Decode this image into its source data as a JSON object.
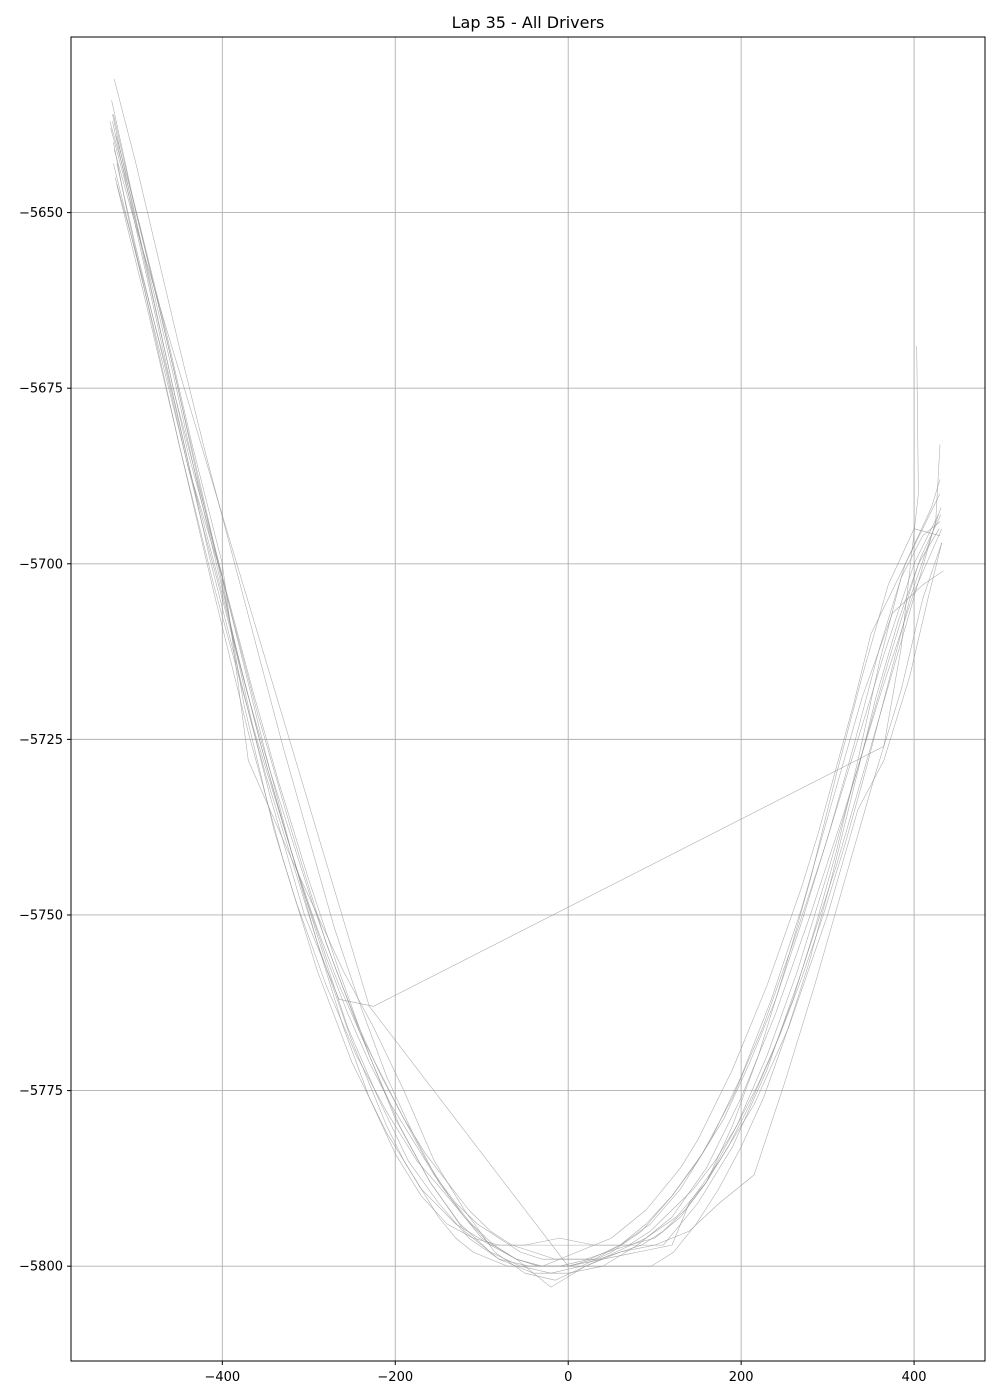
{
  "chart_data": {
    "type": "line",
    "title": "Lap 35 - All Drivers",
    "xlabel": "",
    "ylabel": "",
    "xlim": [
      -575,
      482
    ],
    "ylim": [
      -5813.5,
      -5625
    ],
    "grid": true,
    "x_ticks": [
      -400,
      -200,
      0,
      200,
      400
    ],
    "y_ticks": [
      -5650,
      -5675,
      -5700,
      -5725,
      -5750,
      -5775,
      -5800
    ],
    "x_tick_labels": [
      "−400",
      "−200",
      "0",
      "200",
      "400"
    ],
    "y_tick_labels": [
      "−5650",
      "−5675",
      "−5700",
      "−5725",
      "−5750",
      "−5775",
      "−5800"
    ],
    "line_color": "#8c8c8c",
    "series": [
      {
        "x": [
          -526,
          -510,
          -490,
          -470,
          -450,
          -430,
          -410,
          -390,
          -370,
          -350,
          -330,
          -310,
          -290,
          -270,
          -250,
          -230,
          -210,
          -190,
          -170,
          -150,
          -130,
          -110,
          -90,
          -70,
          -50,
          -30,
          -10,
          10,
          30,
          50,
          70,
          90,
          110,
          130,
          150,
          170,
          190,
          210,
          230,
          250,
          270,
          290,
          310,
          330,
          350,
          370,
          390,
          410,
          430
        ],
        "y": [
          -5640,
          -5650,
          -5661,
          -5672,
          -5683,
          -5693,
          -5703,
          -5712,
          -5721,
          -5730,
          -5738,
          -5746,
          -5754,
          -5761,
          -5768,
          -5774,
          -5780,
          -5785,
          -5789,
          -5793,
          -5796,
          -5798,
          -5799,
          -5800,
          -5800,
          -5800,
          -5799,
          -5798,
          -5797,
          -5796,
          -5794,
          -5792,
          -5789,
          -5786,
          -5782,
          -5777,
          -5772,
          -5766,
          -5760,
          -5753,
          -5746,
          -5738,
          -5729,
          -5720,
          -5710,
          -5705,
          -5700,
          -5695,
          -5690
        ]
      },
      {
        "x": [
          -522,
          -500,
          -470,
          -440,
          -400,
          -360,
          -320,
          -280,
          -240,
          -200,
          -160,
          -120,
          -80,
          -40,
          0,
          40,
          80,
          120,
          160,
          200,
          240,
          280,
          320,
          360,
          400,
          432
        ],
        "y": [
          -5643,
          -5655,
          -5670,
          -5686,
          -5702,
          -5721,
          -5738,
          -5754,
          -5767,
          -5779,
          -5788,
          -5795,
          -5799,
          -5801,
          -5801,
          -5800,
          -5797,
          -5793,
          -5786,
          -5776,
          -5764,
          -5750,
          -5735,
          -5719,
          -5704,
          -5695
        ]
      },
      {
        "x": [
          -530,
          -505,
          -480,
          -455,
          -425,
          -395,
          -365,
          -335,
          -300,
          -265,
          -230,
          -195,
          -160,
          -125,
          -90,
          -55,
          -20,
          15,
          50,
          85,
          120,
          155,
          190,
          225,
          260,
          295,
          330,
          365,
          400,
          428
        ],
        "y": [
          -5637,
          -5648,
          -5662,
          -5676,
          -5690,
          -5704,
          -5718,
          -5731,
          -5745,
          -5758,
          -5770,
          -5780,
          -5788,
          -5794,
          -5798,
          -5800,
          -5801,
          -5800,
          -5798,
          -5795,
          -5790,
          -5784,
          -5776,
          -5766,
          -5754,
          -5741,
          -5727,
          -5713,
          -5700,
          -5693
        ]
      },
      {
        "x": [
          -524,
          -495,
          -465,
          -435,
          -405,
          -380,
          -355,
          -325,
          -290,
          -255,
          -220,
          -185,
          -150,
          -115,
          -80,
          -45,
          -10,
          25,
          60,
          95,
          130,
          165,
          200,
          235,
          270,
          305,
          340,
          375,
          410,
          434
        ],
        "y": [
          -5645,
          -5658,
          -5672,
          -5688,
          -5702,
          -5714,
          -5726,
          -5739,
          -5753,
          -5766,
          -5776,
          -5785,
          -5791,
          -5796,
          -5799,
          -5800,
          -5800,
          -5799,
          -5797,
          -5794,
          -5789,
          -5782,
          -5773,
          -5762,
          -5749,
          -5734,
          -5719,
          -5707,
          -5703,
          -5701
        ]
      },
      {
        "x": [
          -528,
          -505,
          -480,
          -455,
          -430,
          -405,
          -385,
          -365,
          -340,
          -315,
          -290,
          -265,
          -240,
          -215,
          -190,
          -165,
          -140,
          -115,
          -90,
          -65,
          -40,
          -15,
          10,
          35,
          60,
          85,
          110,
          135,
          160,
          185,
          210,
          235,
          260,
          285,
          310,
          335,
          360,
          385,
          410,
          430
        ],
        "y": [
          -5634,
          -5647,
          -5660,
          -5673,
          -5687,
          -5700,
          -5712,
          -5723,
          -5733,
          -5743,
          -5752,
          -5760,
          -5767,
          -5773,
          -5779,
          -5784,
          -5788,
          -5792,
          -5795,
          -5797,
          -5798,
          -5799,
          -5799,
          -5799,
          -5798,
          -5797,
          -5795,
          -5792,
          -5788,
          -5783,
          -5777,
          -5770,
          -5762,
          -5752,
          -5741,
          -5728,
          -5714,
          -5702,
          -5696,
          -5694
        ]
      },
      {
        "x": [
          -525,
          -500,
          -475,
          -450,
          -420,
          -390,
          -360,
          -330,
          -300,
          -270,
          -240,
          -210,
          -180,
          -150,
          -120,
          -90,
          -60,
          -30,
          0,
          30,
          60,
          90,
          120,
          150,
          180,
          210,
          240,
          270,
          300,
          330,
          360,
          390,
          420,
          430
        ],
        "y": [
          -5631,
          -5643,
          -5656,
          -5669,
          -5684,
          -5698,
          -5712,
          -5726,
          -5739,
          -5752,
          -5763,
          -5773,
          -5781,
          -5788,
          -5793,
          -5797,
          -5799,
          -5800,
          -5800,
          -5799,
          -5797,
          -5794,
          -5790,
          -5785,
          -5779,
          -5771,
          -5762,
          -5751,
          -5739,
          -5726,
          -5712,
          -5700,
          -5692,
          -5688
        ]
      },
      {
        "x": [
          -527,
          -490,
          -440,
          -400,
          -375,
          -340,
          -315,
          -280,
          -245,
          -210,
          -175,
          -140,
          -100,
          -60,
          -20,
          20,
          60,
          100,
          140,
          175,
          215,
          250,
          285,
          320,
          355,
          385,
          410,
          432
        ],
        "y": [
          -5636,
          -5657,
          -5684,
          -5702,
          -5720,
          -5738,
          -5748,
          -5760,
          -5770,
          -5778,
          -5785,
          -5790,
          -5796,
          -5799,
          -5803,
          -5800,
          -5798,
          -5797,
          -5795,
          -5791,
          -5787,
          -5774,
          -5760,
          -5745,
          -5730,
          -5718,
          -5705,
          -5697
        ]
      },
      {
        "x": [
          -523,
          -495,
          -465,
          -435,
          -400,
          -370,
          -345,
          -320,
          -290,
          -260,
          -225,
          -190,
          -155,
          -120,
          -85,
          -50,
          -15,
          20,
          55,
          90,
          125,
          160,
          195,
          230,
          265,
          300,
          335,
          370,
          405,
          429
        ],
        "y": [
          -5639,
          -5652,
          -5667,
          -5683,
          -5700,
          -5728,
          -5735,
          -5742,
          -5750,
          -5758,
          -5766,
          -5775,
          -5785,
          -5792,
          -5798,
          -5801,
          -5802,
          -5800,
          -5798,
          -5796,
          -5793,
          -5788,
          -5780,
          -5770,
          -5758,
          -5744,
          -5729,
          -5714,
          -5700,
          -5695
        ]
      },
      {
        "x": [
          -526,
          -500,
          -470,
          -440,
          -410,
          -380,
          -350,
          -320,
          -290,
          -260,
          -230,
          -200,
          -170,
          -140,
          -110,
          -80,
          -50,
          -20,
          10,
          40,
          70,
          100,
          130,
          160,
          190,
          220,
          250,
          280,
          310,
          340,
          370,
          400,
          430
        ],
        "y": [
          -5636,
          -5650,
          -5665,
          -5681,
          -5697,
          -5712,
          -5727,
          -5741,
          -5754,
          -5766,
          -5776,
          -5784,
          -5790,
          -5794,
          -5796,
          -5797,
          -5797,
          -5797,
          -5797,
          -5797,
          -5797,
          -5796,
          -5793,
          -5788,
          -5780,
          -5770,
          -5758,
          -5745,
          -5730,
          -5716,
          -5703,
          -5695,
          -5696
        ]
      },
      {
        "x": [
          -529,
          -505,
          -480,
          -455,
          -430,
          -405,
          -380,
          -355,
          -330,
          -305,
          -280,
          -255,
          -230,
          -205,
          -180,
          -155,
          -130,
          -105,
          -80,
          -55,
          -30,
          -5,
          20,
          45,
          70,
          95,
          120,
          145,
          170,
          195,
          220,
          245,
          270,
          295,
          320,
          345,
          370,
          395,
          420,
          431
        ],
        "y": [
          -5638,
          -5649,
          -5661,
          -5674,
          -5688,
          -5701,
          -5714,
          -5726,
          -5737,
          -5747,
          -5756,
          -5764,
          -5771,
          -5777,
          -5782,
          -5787,
          -5791,
          -5794,
          -5796,
          -5798,
          -5799,
          -5799,
          -5799,
          -5798,
          -5797,
          -5795,
          -5792,
          -5789,
          -5785,
          -5780,
          -5774,
          -5767,
          -5759,
          -5750,
          -5740,
          -5729,
          -5717,
          -5705,
          -5696,
          -5692
        ]
      },
      {
        "x": [
          -525,
          -500,
          -230,
          0,
          120,
          140,
          175,
          215,
          255,
          300,
          335,
          365,
          395,
          416,
          432
        ],
        "y": [
          -5641,
          -5652,
          -5763,
          -5800,
          -5797,
          -5791,
          -5785,
          -5777,
          -5766,
          -5750,
          -5735,
          -5728,
          -5716,
          -5705,
          -5697
        ]
      },
      {
        "x": [
          -527,
          -495,
          -455,
          -415,
          -380,
          -345,
          -305,
          -265,
          -225,
          365,
          385,
          405,
          403
        ],
        "y": [
          -5637,
          -5655,
          -5677,
          -5699,
          -5716,
          -5733,
          -5750,
          -5762,
          -5763,
          -5726,
          -5712,
          -5690,
          -5669
        ]
      },
      {
        "x": [
          -522,
          -488,
          -450,
          -410,
          -370,
          -330,
          -290,
          -250,
          -210,
          -170,
          -130,
          -90,
          -50,
          -10,
          30,
          70,
          110,
          150,
          190,
          230,
          270,
          310,
          350,
          390,
          425,
          430
        ],
        "y": [
          -5646,
          -5663,
          -5683,
          -5704,
          -5724,
          -5742,
          -5758,
          -5771,
          -5781,
          -5789,
          -5794,
          -5797,
          -5797,
          -5796,
          -5797,
          -5797,
          -5797,
          -5791,
          -5783,
          -5772,
          -5758,
          -5743,
          -5726,
          -5709,
          -5694,
          -5683
        ]
      },
      {
        "x": [
          -526,
          -500,
          -476,
          -450,
          -424,
          -398,
          -372,
          -346,
          -320,
          -294,
          -268,
          -242,
          -216,
          -190,
          -164,
          -138,
          -112,
          -86,
          -60,
          -34,
          -8,
          18,
          44,
          70,
          96,
          122,
          148,
          174,
          200,
          226,
          252,
          278,
          304,
          330,
          356,
          382,
          408,
          431
        ],
        "y": [
          -5643,
          -5656,
          -5668,
          -5681,
          -5694,
          -5706,
          -5718,
          -5729,
          -5739,
          -5749,
          -5758,
          -5766,
          -5773,
          -5779,
          -5785,
          -5790,
          -5794,
          -5797,
          -5799,
          -5800,
          -5800,
          -5800,
          -5800,
          -5800,
          -5800,
          -5798,
          -5794,
          -5789,
          -5783,
          -5776,
          -5767,
          -5757,
          -5745,
          -5732,
          -5719,
          -5708,
          -5699,
          -5693
        ]
      }
    ]
  }
}
